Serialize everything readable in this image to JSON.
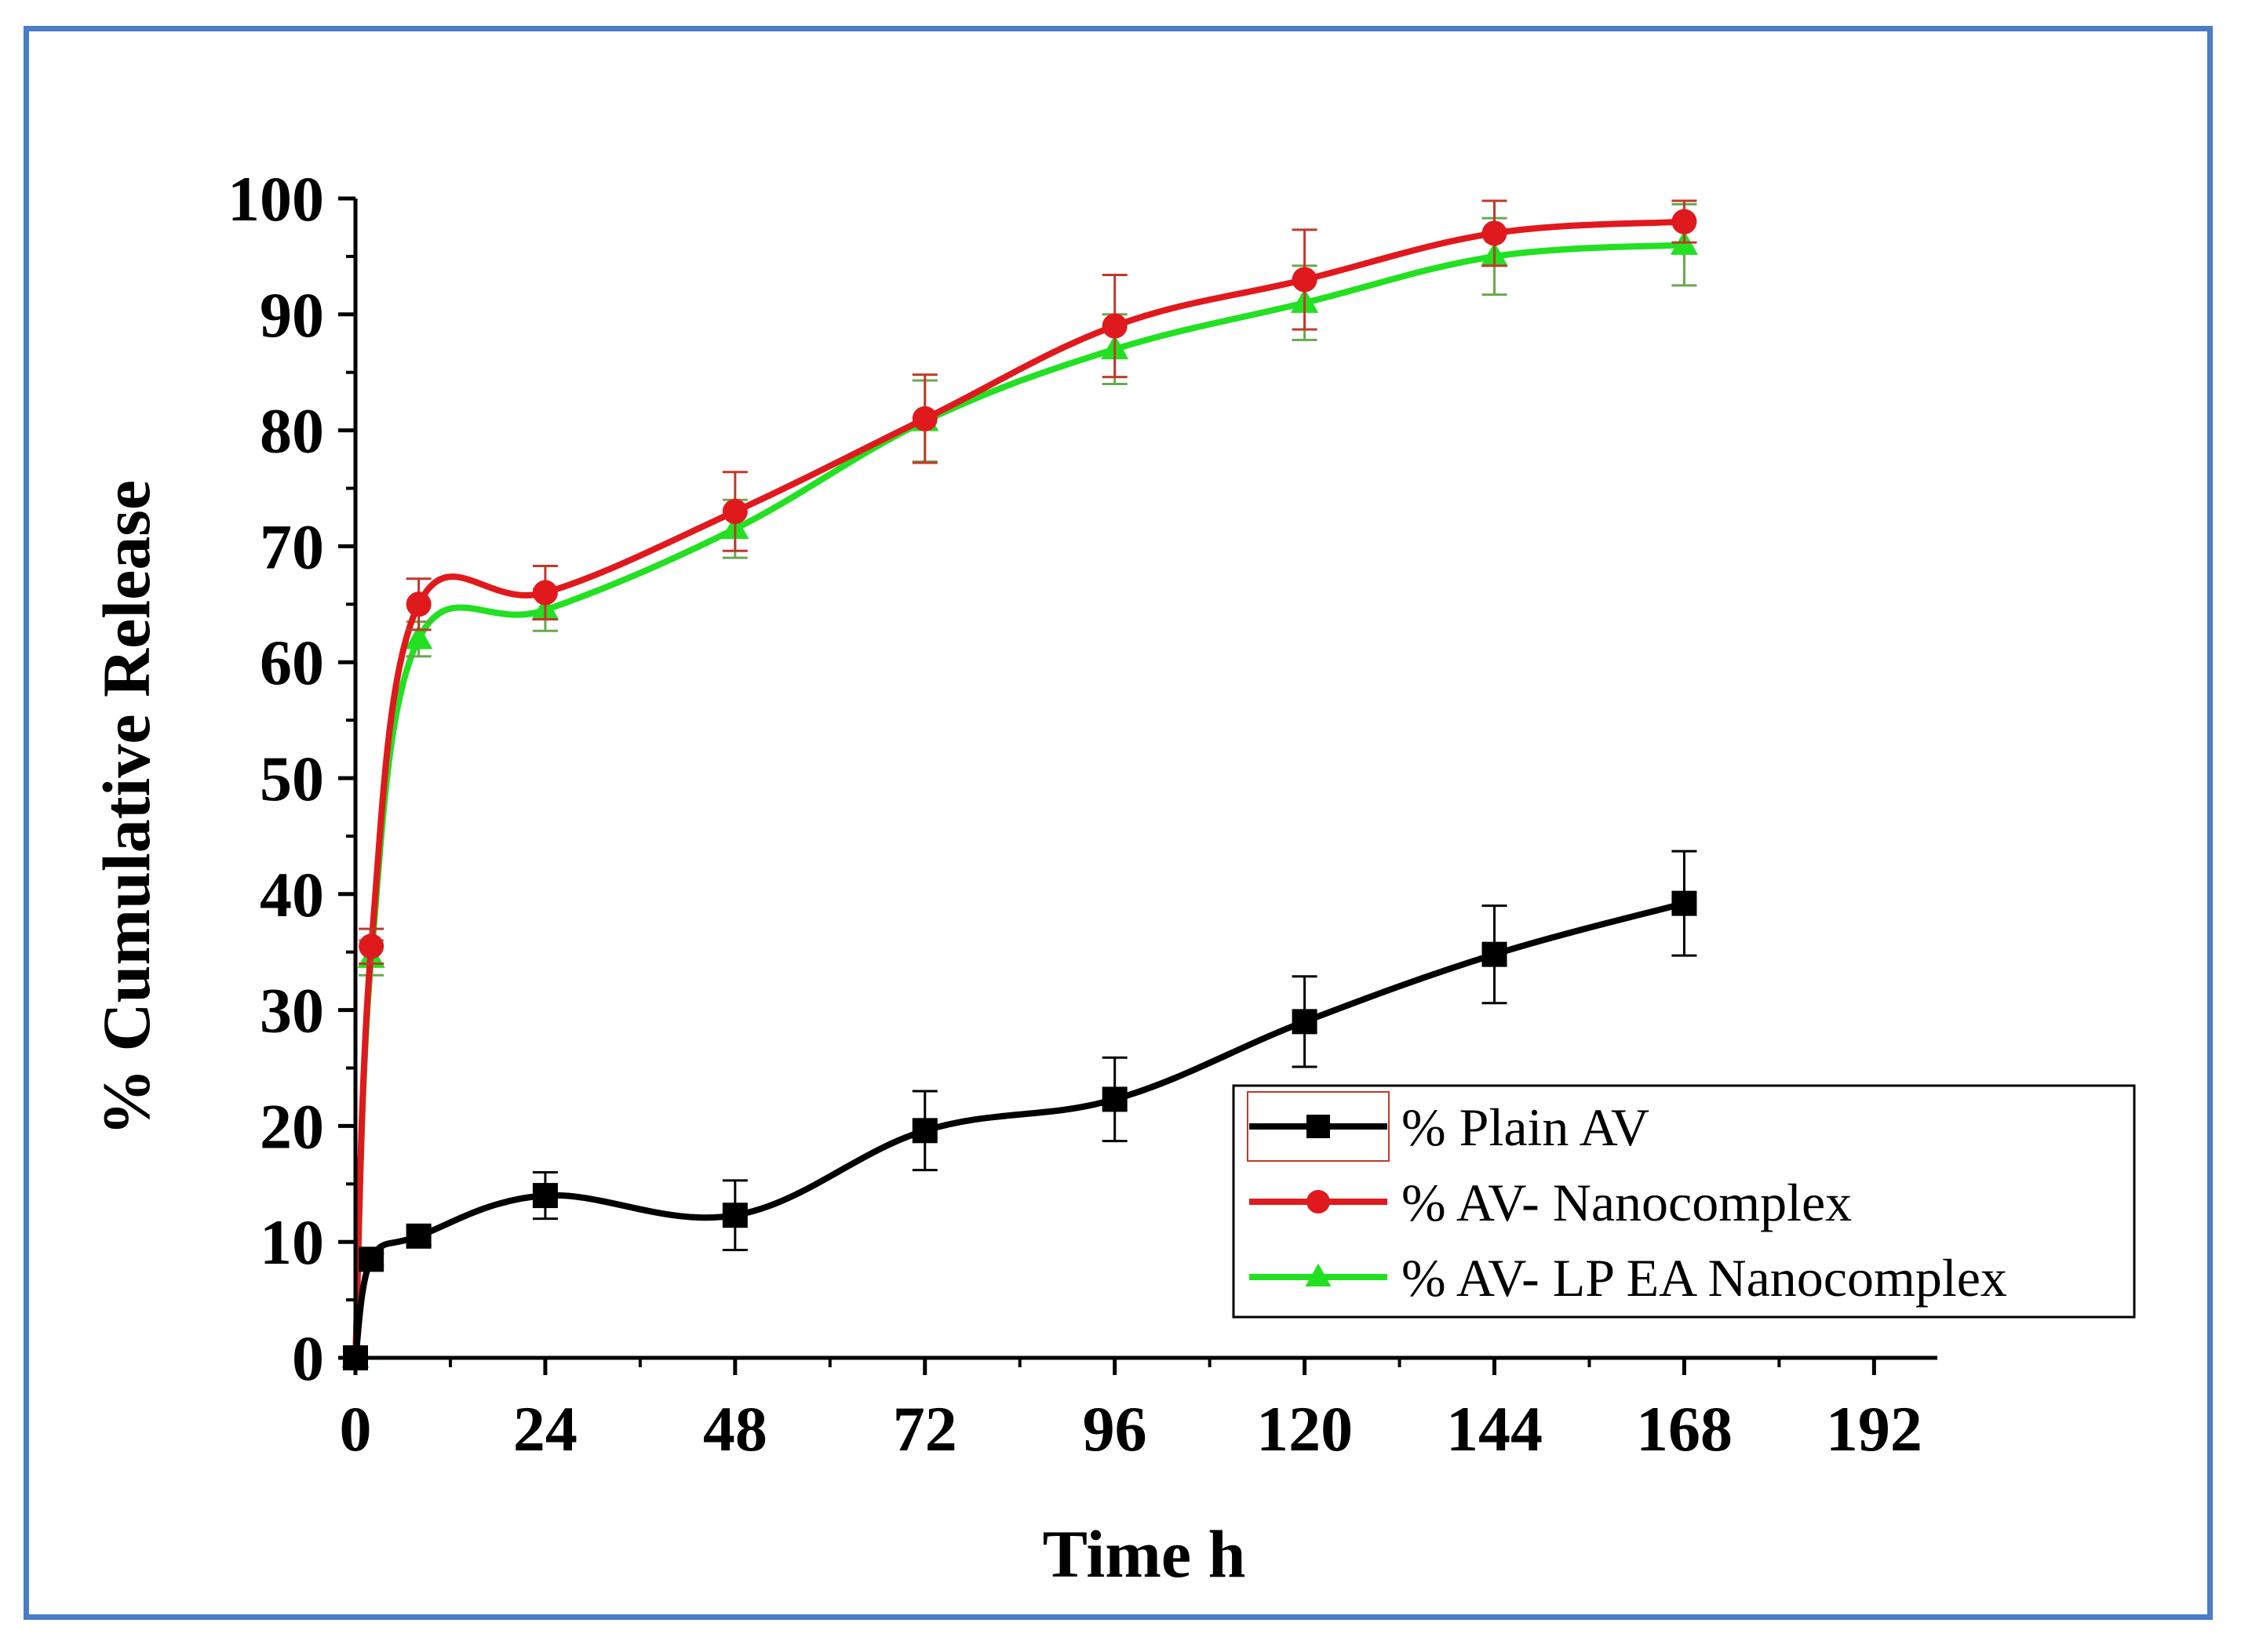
{
  "chart_data": {
    "type": "line",
    "title": "",
    "xlabel": "Time h",
    "ylabel": "% Cumulative Release",
    "xlim": [
      0,
      200
    ],
    "ylim": [
      0,
      100
    ],
    "x_ticks": [
      0,
      24,
      48,
      72,
      96,
      120,
      144,
      168,
      192
    ],
    "x_tick_labels": [
      "0",
      "24",
      "48",
      "72",
      "96",
      "120",
      "144",
      "168",
      "192"
    ],
    "y_ticks": [
      0,
      10,
      20,
      30,
      40,
      50,
      60,
      70,
      80,
      90,
      100
    ],
    "y_tick_labels": [
      "0",
      "10",
      "20",
      "30",
      "40",
      "50",
      "60",
      "70",
      "80",
      "90",
      "100"
    ],
    "legend_position": "bottom-right",
    "series": [
      {
        "name": "% Plain AV",
        "color": "#000000",
        "marker": "square",
        "x": [
          0,
          2,
          8,
          24,
          48,
          72,
          96,
          120,
          144,
          168
        ],
        "values": [
          0,
          8.5,
          10.5,
          14,
          12.3,
          19.6,
          22.3,
          29,
          34.8,
          39.2
        ],
        "errors": [
          0,
          0.5,
          0.8,
          2.0,
          3.0,
          3.4,
          3.6,
          3.9,
          4.2,
          4.5
        ]
      },
      {
        "name": "% AV- Nanocomplex",
        "color": "#e0191d",
        "marker": "circle",
        "x": [
          0,
          2,
          8,
          24,
          48,
          72,
          96,
          120,
          144,
          168
        ],
        "values": [
          0,
          35.5,
          65,
          66,
          73,
          81,
          89,
          93,
          97,
          98
        ],
        "errors": [
          0,
          1.5,
          2.2,
          2.3,
          3.4,
          3.8,
          4.4,
          4.3,
          2.8,
          1.8
        ]
      },
      {
        "name": "% AV- LP EA Nanocomplex",
        "color": "#22e022",
        "marker": "triangle",
        "x": [
          0,
          2,
          8,
          24,
          48,
          72,
          96,
          120,
          144,
          168
        ],
        "values": [
          0,
          34.5,
          62,
          64.5,
          71.5,
          80.8,
          87,
          91,
          95,
          96
        ],
        "errors": [
          0,
          1.5,
          1.5,
          1.8,
          2.5,
          3.5,
          3.0,
          3.2,
          3.3,
          3.5
        ]
      }
    ]
  }
}
